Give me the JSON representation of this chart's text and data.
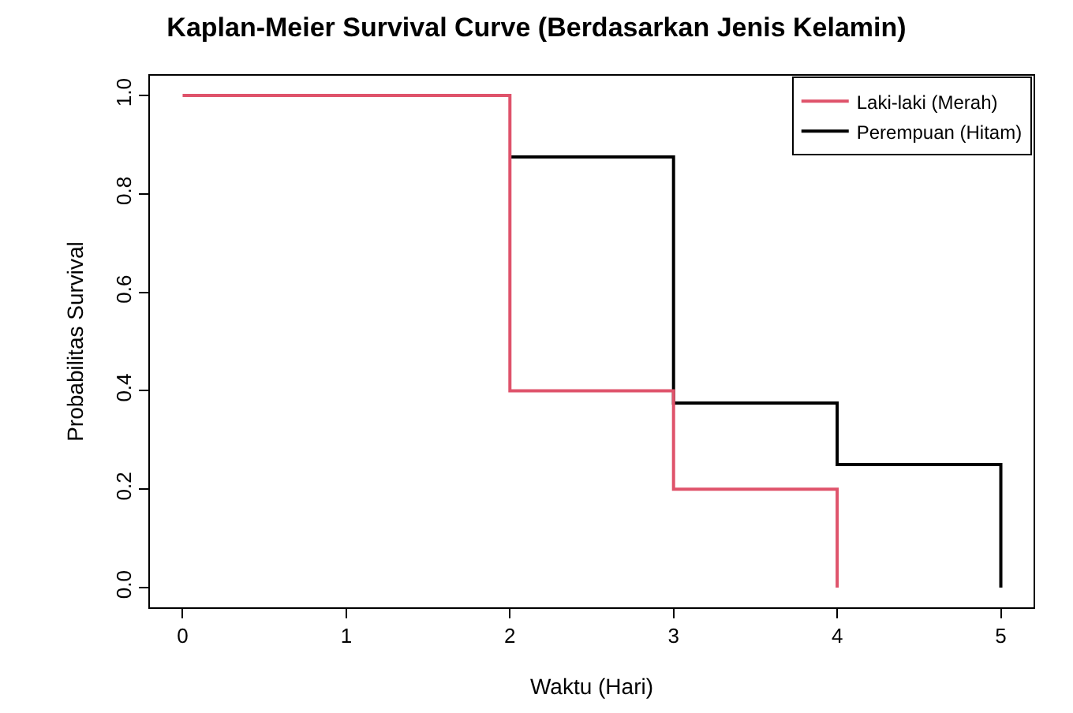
{
  "chart_data": {
    "type": "step",
    "title": "Kaplan-Meier Survival Curve (Berdasarkan Jenis Kelamin)",
    "xlabel": "Waktu (Hari)",
    "ylabel": "Probabilitas Survival",
    "series": [
      {
        "name": "Laki-laki (Merah)",
        "color": "#df536b",
        "x": [
          0,
          2,
          3,
          4
        ],
        "values": [
          1.0,
          0.4,
          0.2,
          0.0
        ]
      },
      {
        "name": "Perempuan (Hitam)",
        "color": "#000000",
        "x": [
          2,
          3,
          4,
          5
        ],
        "values": [
          0.875,
          0.375,
          0.25,
          0.0
        ]
      }
    ],
    "xlim": [
      -0.2,
      5.2
    ],
    "xticks": [
      0,
      1,
      2,
      3,
      4,
      5
    ],
    "ylim": [
      -0.04,
      1.04
    ],
    "yticks": [
      {
        "value": 0,
        "label": "0.0"
      },
      0.2,
      0.4,
      0.6,
      0.8,
      {
        "value": 1,
        "label": "1.0"
      }
    ],
    "legend": "top right"
  }
}
